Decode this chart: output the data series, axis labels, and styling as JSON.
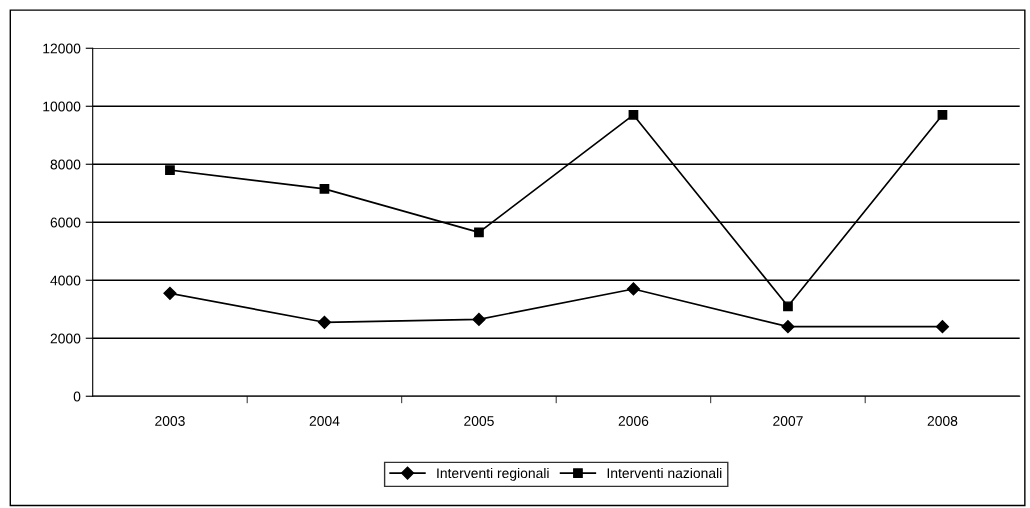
{
  "chart_data": {
    "type": "line",
    "categories": [
      "2003",
      "2004",
      "2005",
      "2006",
      "2007",
      "2008"
    ],
    "series": [
      {
        "name": "Interventi regionali",
        "color": "#000000",
        "marker": "diamond",
        "values": [
          3550,
          2550,
          2650,
          3700,
          2400,
          2400
        ]
      },
      {
        "name": "Interventi nazionali",
        "color": "#000000",
        "marker": "square",
        "values": [
          7800,
          7150,
          5650,
          9700,
          3100,
          9700
        ]
      }
    ],
    "ylim": [
      0,
      12000
    ],
    "yticks": [
      0,
      2000,
      4000,
      6000,
      8000,
      10000,
      12000
    ],
    "grid": "y",
    "legend": "bottom",
    "line_style": "solid"
  }
}
